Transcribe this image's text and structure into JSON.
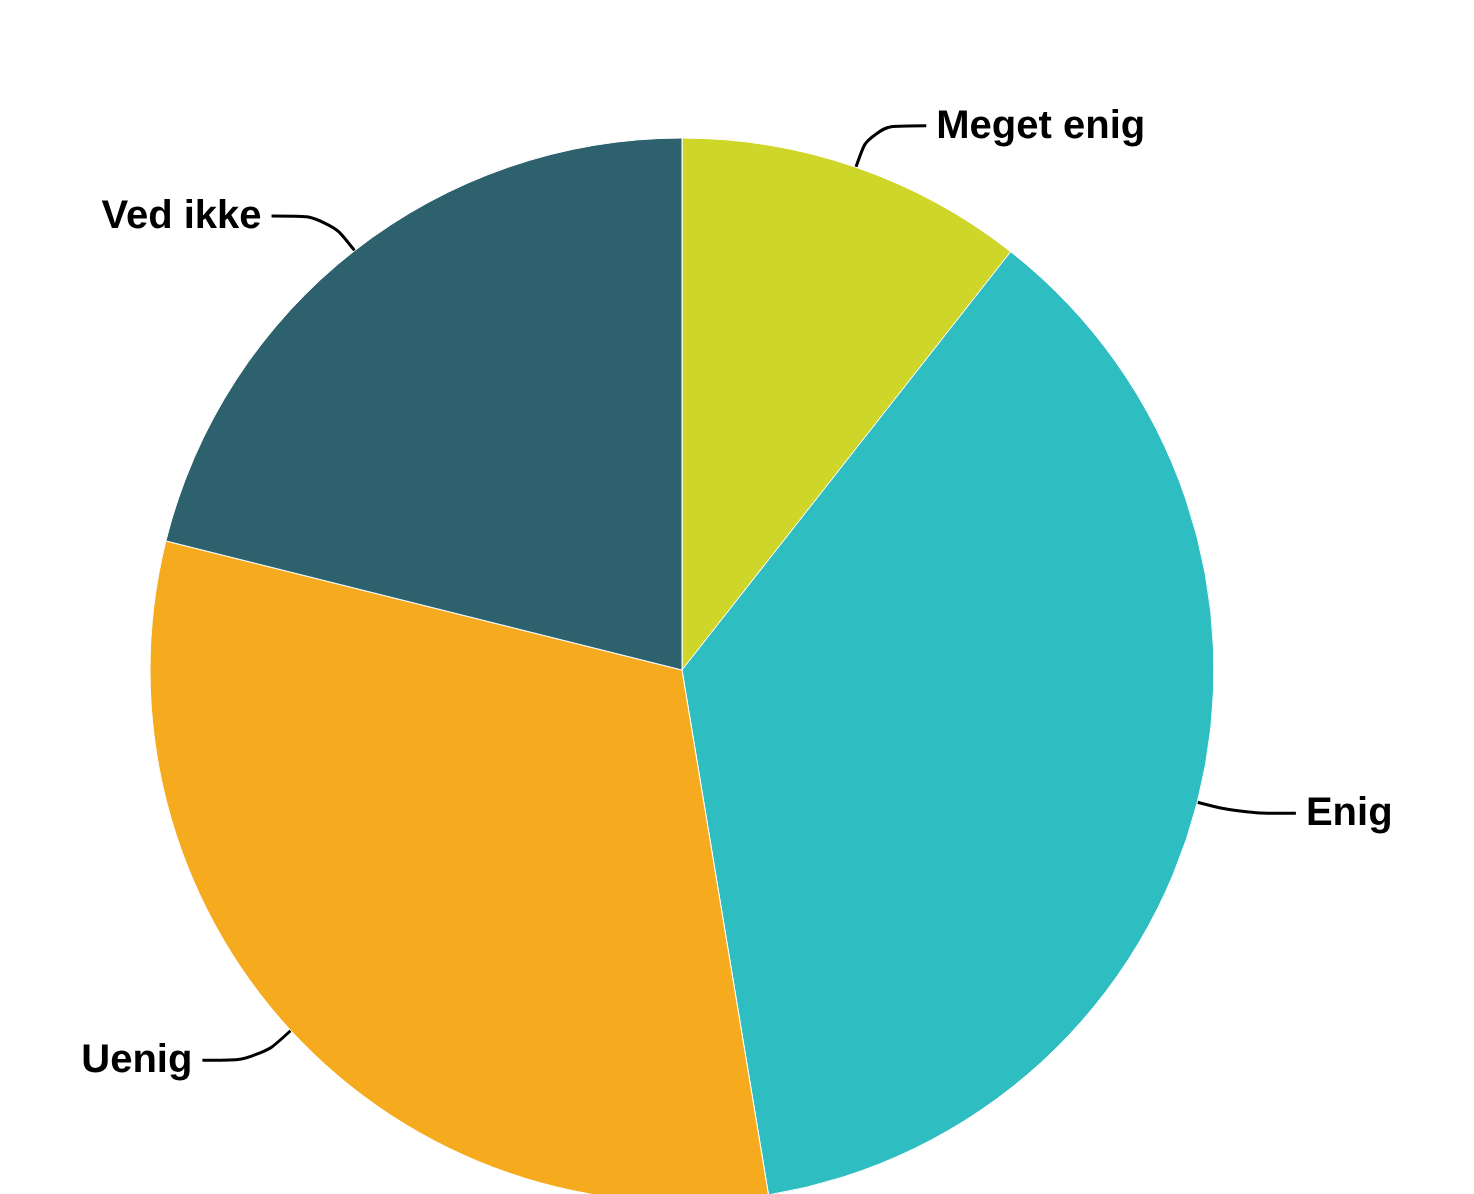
{
  "chart_data": {
    "type": "pie",
    "categories": [
      "Meget enig",
      "Enig",
      "Uenig",
      "Ved ikke"
    ],
    "values": [
      10.6,
      36.8,
      31.5,
      21.1
    ],
    "colors": [
      "#cdd629",
      "#2ebdc0",
      "#f5ab1d",
      "#2c616d"
    ]
  }
}
